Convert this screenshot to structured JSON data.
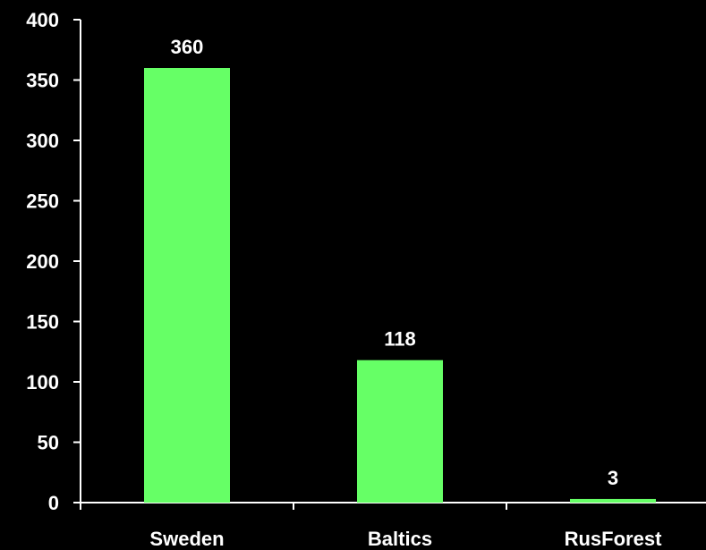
{
  "chart_data": {
    "type": "bar",
    "title": "",
    "xlabel": "",
    "ylabel": "",
    "categories": [
      "Sweden",
      "Baltics",
      "RusForest"
    ],
    "values": [
      360,
      118,
      3
    ],
    "data_labels": [
      "360",
      "118",
      "3"
    ],
    "ylim": [
      0,
      400
    ],
    "yticks": [
      0,
      50,
      100,
      150,
      200,
      250,
      300,
      350,
      400
    ],
    "ytick_labels": [
      "0",
      "50",
      "100",
      "150",
      "200",
      "250",
      "300",
      "350",
      "400"
    ],
    "grid": false,
    "legend": "none"
  },
  "colors": {
    "background": "#000000",
    "bar": "#66ff66",
    "axis": "#ffffff",
    "text": "#ffffff"
  }
}
